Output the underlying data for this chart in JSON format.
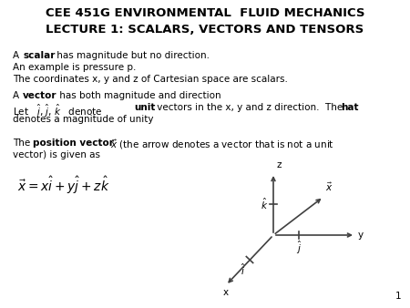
{
  "title1": "CEE 451G ENVIRONMENTAL  FLUID MECHANICS",
  "title2": "LECTURE 1: SCALARS, VECTORS AND TENSORS",
  "bg_color": "#ffffff",
  "text_color": "#000000",
  "font_size_title": 9.5,
  "font_size_body": 7.5,
  "page_number": "1",
  "axis_color": "#404040"
}
